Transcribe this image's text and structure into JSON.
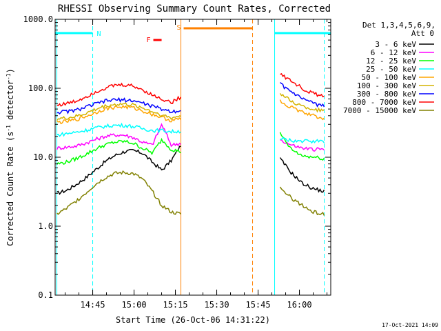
{
  "chart_data": {
    "type": "line",
    "title": "RHESSI Observing Summary Count Rates, Corrected",
    "xlabel": "Start Time (26-Oct-06 14:31:22)",
    "ylabel_parts": [
      "Corrected Count Rate (s",
      "-1",
      " detector",
      "-1",
      ")"
    ],
    "y_scale": "log",
    "ylim": [
      0.1,
      1000.0
    ],
    "xlim": [
      "14:31:22",
      "16:11:22"
    ],
    "y_ticks": [
      "0.1",
      "1.0",
      "10.0",
      "100.0",
      "1000.0"
    ],
    "x_ticks": [
      "14:45",
      "15:00",
      "15:15",
      "15:30",
      "15:45",
      "16:00"
    ],
    "legend_header": [
      "Det 1,3,4,5,6,9,",
      "Att 0"
    ],
    "legend_position": "top-right, outside",
    "timestamp": "17-Oct-2021 14:09",
    "x_segments": [
      [
        "14:32",
        "15:17"
      ],
      [
        "15:53",
        "16:09"
      ]
    ],
    "series": [
      {
        "name": "3 - 6 keV",
        "color": "#000000",
        "seg1": [
          3.0,
          3.3,
          4.0,
          5.0,
          6.5,
          8.5,
          10.5,
          12.0,
          12.5,
          11.5,
          8.5,
          6.5,
          9.0,
          15.0
        ],
        "seg2": [
          9.5,
          6.0,
          4.2,
          3.5,
          3.2
        ]
      },
      {
        "name": "6 - 12 keV",
        "color": "#ff00ff",
        "seg1": [
          13.5,
          14.0,
          14.5,
          16.0,
          18.0,
          20.0,
          21.0,
          21.0,
          19.5,
          16.5,
          15.0,
          30.0,
          15.0,
          16.0
        ],
        "seg2": [
          18.0,
          15.0,
          13.5,
          13.0,
          13.0
        ]
      },
      {
        "name": "12 - 25 keV",
        "color": "#00ff00",
        "seg1": [
          8.0,
          8.5,
          9.5,
          11.0,
          13.0,
          15.0,
          16.5,
          17.0,
          16.0,
          13.5,
          11.5,
          18.0,
          13.0,
          12.0
        ],
        "seg2": [
          22.0,
          13.0,
          10.5,
          10.0,
          9.5
        ]
      },
      {
        "name": "25 - 50 keV",
        "color": "#00ffff",
        "seg1": [
          21.0,
          22.0,
          23.0,
          24.5,
          26.5,
          28.0,
          29.0,
          29.0,
          28.0,
          26.0,
          24.5,
          24.5,
          23.5,
          24.0
        ],
        "seg2": [
          18.5,
          17.5,
          17.0,
          17.0,
          17.0
        ]
      },
      {
        "name": "50 - 100 keV",
        "color": "#ffa500",
        "seg1": [
          32.0,
          33.0,
          35.0,
          39.0,
          44.0,
          50.0,
          53.0,
          54.0,
          52.0,
          47.0,
          42.0,
          38.0,
          34.0,
          36.0
        ],
        "seg2": [
          65.0,
          53.0,
          45.0,
          40.0,
          37.0
        ]
      },
      {
        "name": "100 - 300 keV",
        "color": "#d4b400",
        "seg1": [
          36.0,
          37.0,
          39.0,
          43.0,
          49.0,
          55.0,
          58.0,
          59.0,
          57.0,
          52.0,
          46.0,
          41.0,
          37.0,
          40.0
        ],
        "seg2": [
          85.0,
          65.0,
          55.0,
          50.0,
          47.0
        ]
      },
      {
        "name": "300 - 800 keV",
        "color": "#0000ff",
        "seg1": [
          45.0,
          46.0,
          48.0,
          53.0,
          59.0,
          65.0,
          68.0,
          68.0,
          66.0,
          61.0,
          55.0,
          50.0,
          46.0,
          48.0
        ],
        "seg2": [
          115.0,
          88.0,
          70.0,
          60.0,
          55.0
        ]
      },
      {
        "name": "800 - 7000 keV",
        "color": "#ff0000",
        "seg1": [
          57.0,
          60.0,
          65.0,
          75.0,
          88.0,
          100.0,
          110.0,
          112.0,
          108.0,
          95.0,
          80.0,
          70.0,
          62.0,
          75.0
        ],
        "seg2": [
          160.0,
          130.0,
          100.0,
          85.0,
          75.0
        ]
      },
      {
        "name": "7000 - 15000 keV",
        "color": "#808000",
        "seg1": [
          1.5,
          1.8,
          2.3,
          3.0,
          4.0,
          5.0,
          5.8,
          6.0,
          5.8,
          4.8,
          3.2,
          2.0,
          1.6,
          1.5
        ],
        "seg2": [
          3.5,
          2.6,
          2.0,
          1.6,
          1.5
        ]
      }
    ],
    "annotations": [
      {
        "label": "N",
        "kind": "night",
        "color": "#00ffff",
        "bars": [
          [
            "14:31:22",
            "14:45"
          ],
          [
            "15:51",
            "16:11:22"
          ]
        ],
        "boundaries": [
          [
            "14:32",
            "solid"
          ],
          [
            "14:45",
            "dashed"
          ],
          [
            "15:51",
            "solid"
          ],
          [
            "16:09",
            "dashed"
          ]
        ]
      },
      {
        "label": "S",
        "kind": "saa",
        "color": "#ff8000",
        "bars": [
          [
            "15:18",
            "15:43"
          ]
        ],
        "boundaries": [
          [
            "15:17",
            "solid"
          ],
          [
            "15:43",
            "dashed"
          ]
        ]
      },
      {
        "label": "F",
        "kind": "flare",
        "color": "#ff0000",
        "bars": [
          [
            "15:07",
            "15:10"
          ]
        ]
      }
    ]
  }
}
